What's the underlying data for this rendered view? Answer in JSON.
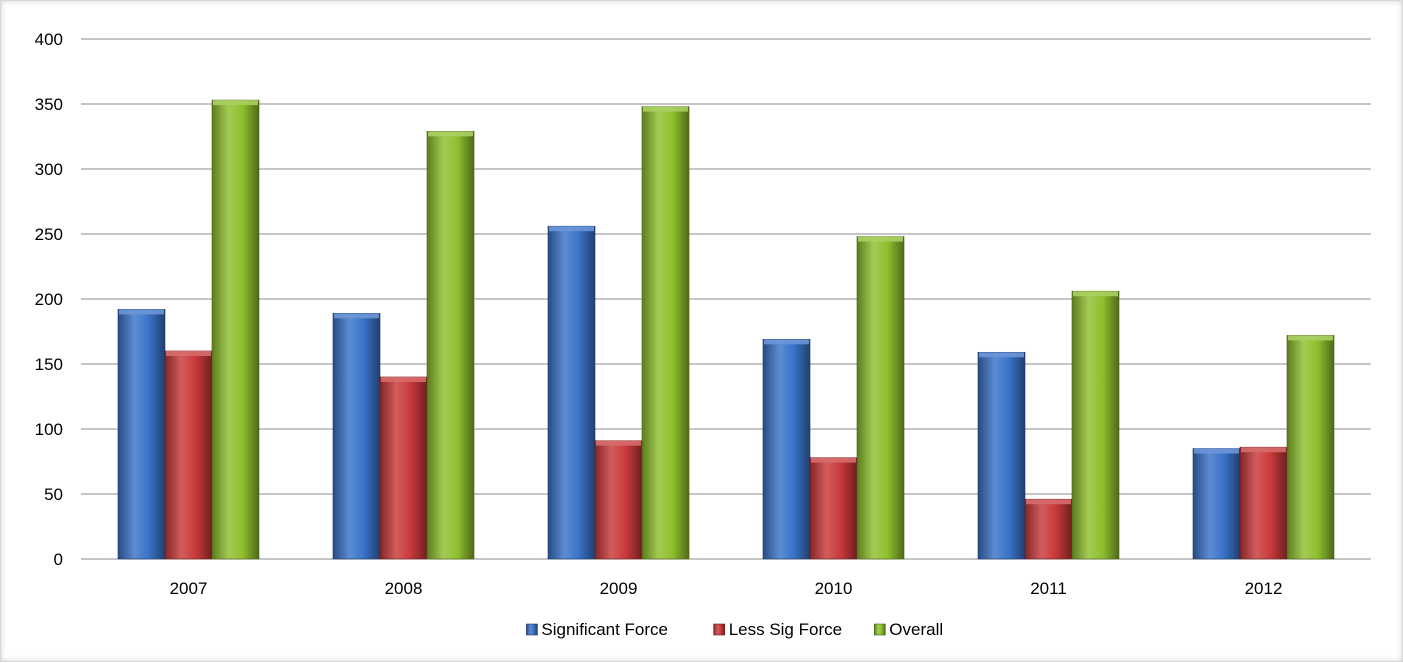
{
  "chart_data": {
    "type": "bar",
    "categories": [
      "2007",
      "2008",
      "2009",
      "2010",
      "2011",
      "2012"
    ],
    "series": [
      {
        "name": "Significant Force",
        "values": [
          192,
          189,
          256,
          169,
          159,
          85
        ],
        "color": "#3a73c9"
      },
      {
        "name": "Less Sig Force",
        "values": [
          160,
          140,
          91,
          78,
          46,
          86
        ],
        "color": "#c9393a"
      },
      {
        "name": "Overall",
        "values": [
          353,
          329,
          348,
          248,
          206,
          172
        ],
        "color": "#8fbf2e"
      }
    ],
    "yticks": [
      "0",
      "50",
      "100",
      "150",
      "200",
      "250",
      "300",
      "350",
      "400"
    ],
    "ylim": [
      0,
      400
    ],
    "grid": true,
    "legend_position": "bottom",
    "title": "",
    "xlabel": "",
    "ylabel": ""
  }
}
